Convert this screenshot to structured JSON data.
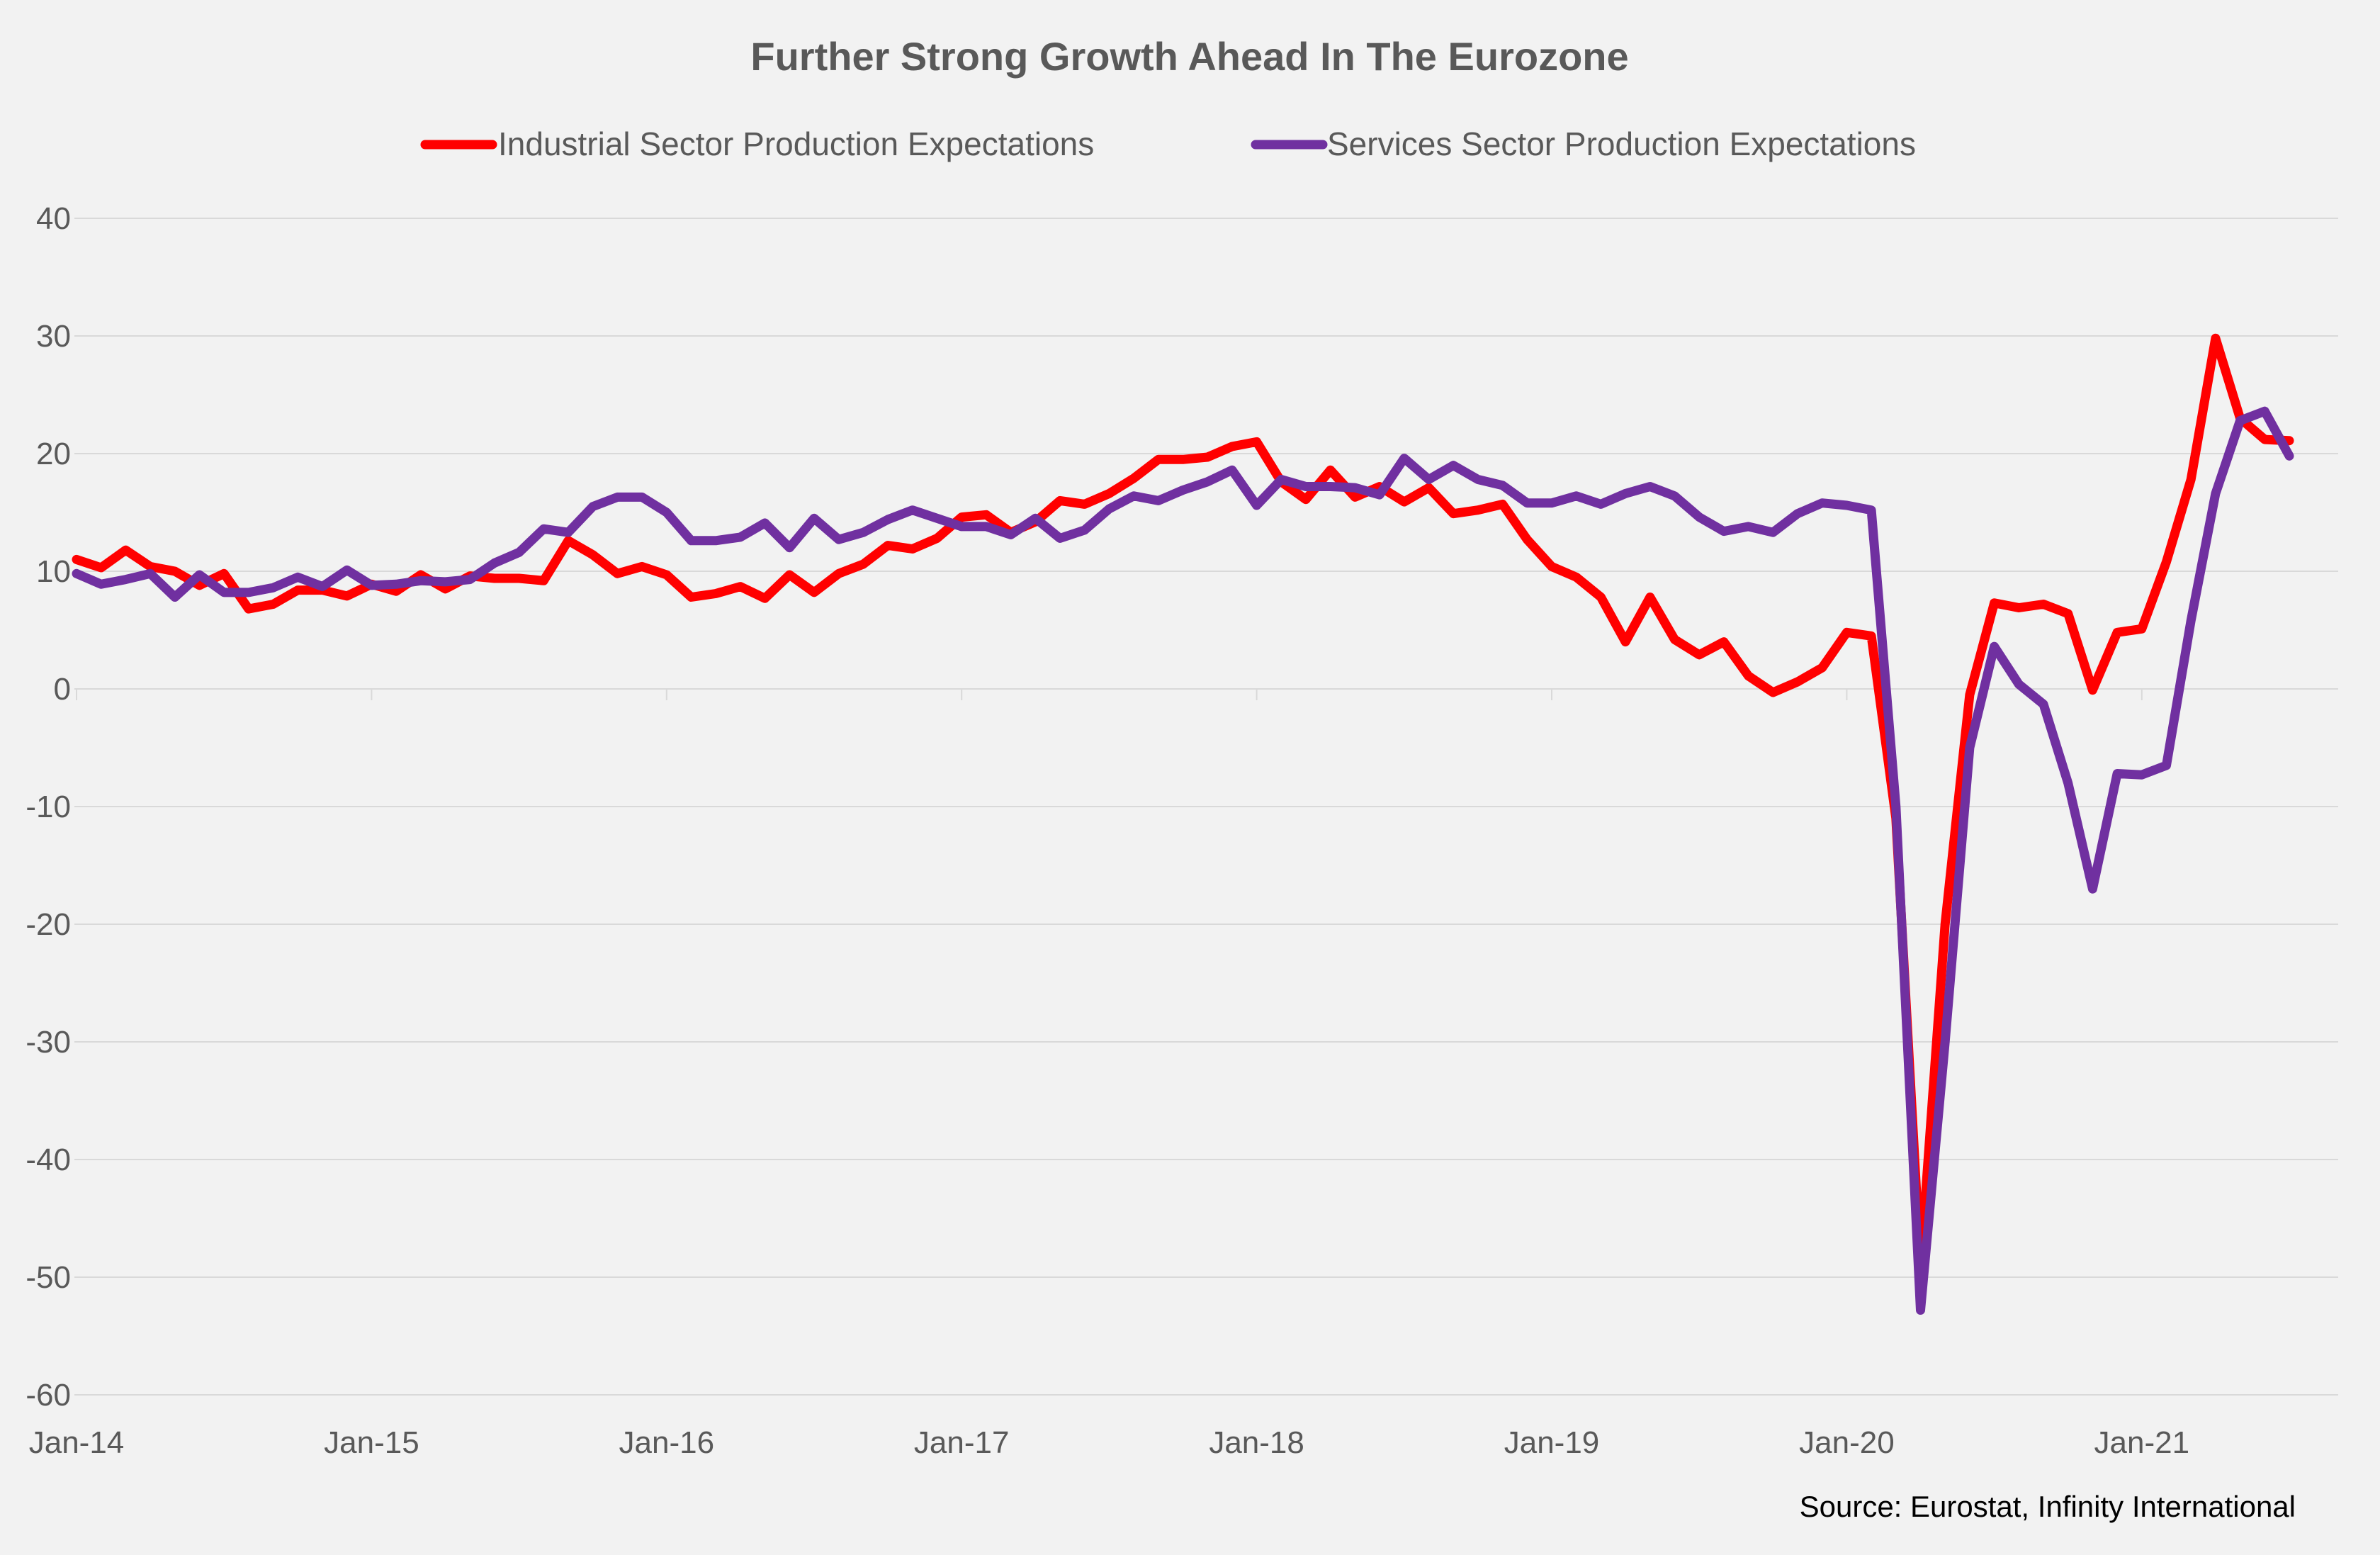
{
  "chart_data": {
    "type": "line",
    "title": "Further Strong Growth Ahead In The Eurozone",
    "xlabel": "",
    "ylabel": "",
    "ylim": [
      -60,
      40
    ],
    "yticks": [
      "40",
      "30",
      "20",
      "10",
      "0",
      "-10",
      "-20",
      "-30",
      "-40",
      "-50",
      "-60"
    ],
    "xticks": [
      "Jan-14",
      "Jan-15",
      "Jan-16",
      "Jan-17",
      "Jan-18",
      "Jan-19",
      "Jan-20",
      "Jan-21"
    ],
    "grid": true,
    "legend_position": "top",
    "source": "Source: Eurostat, Infinity International",
    "x_start": "2014-01",
    "x_end": "2021-06",
    "series": [
      {
        "name": "Industrial Sector Production Expectations",
        "color": "#ff0000",
        "values": [
          11,
          10.3,
          11.8,
          10.4,
          10,
          8.8,
          9.8,
          6.8,
          7.2,
          8.4,
          8.4,
          7.9,
          8.9,
          8.3,
          9.7,
          8.5,
          9.6,
          9.4,
          9.4,
          9.2,
          12.6,
          11.4,
          9.8,
          10.4,
          9.7,
          7.8,
          8.1,
          8.7,
          7.7,
          9.7,
          8.2,
          9.8,
          10.6,
          12.2,
          11.9,
          12.8,
          14.6,
          14.8,
          13.3,
          14.2,
          16,
          15.7,
          16.6,
          17.9,
          19.5,
          19.5,
          19.7,
          20.6,
          21,
          17.6,
          16.1,
          18.6,
          16.3,
          17.2,
          15.9,
          17.1,
          14.9,
          15.2,
          15.7,
          12.7,
          10.4,
          9.5,
          7.8,
          4.0,
          7.8,
          4.2,
          2.9,
          4.0,
          1.1,
          -0.3,
          0.6,
          1.8,
          4.8,
          4.5,
          -11,
          -49,
          -20,
          -0.5,
          7.3,
          6.9,
          7.2,
          6.4,
          -0.1,
          4.8,
          5.1,
          10.8,
          17.8,
          29.8,
          23.0,
          21.2,
          21.1
        ]
      },
      {
        "name": "Services Sector Production Expectations",
        "color": "#7030a0",
        "values": [
          9.8,
          8.9,
          9.3,
          9.8,
          7.8,
          9.7,
          8.2,
          8.2,
          8.6,
          9.5,
          8.7,
          10.1,
          8.8,
          8.9,
          9.2,
          9.1,
          9.3,
          10.7,
          11.6,
          13.6,
          13.3,
          15.5,
          16.3,
          16.3,
          15.0,
          12.6,
          12.6,
          12.9,
          14.1,
          12.0,
          14.5,
          12.7,
          13.3,
          14.4,
          15.2,
          14.5,
          13.8,
          13.8,
          13.1,
          14.5,
          12.8,
          13.5,
          15.3,
          16.4,
          16.0,
          16.9,
          17.6,
          18.6,
          15.6,
          17.8,
          17.2,
          17.2,
          17.1,
          16.5,
          19.6,
          17.8,
          19.0,
          17.8,
          17.3,
          15.8,
          15.8,
          16.4,
          15.7,
          16.6,
          17.2,
          16.4,
          14.6,
          13.4,
          13.8,
          13.3,
          14.9,
          15.8,
          15.6,
          15.2,
          -10,
          -52.8,
          -30,
          -5,
          3.6,
          0.4,
          -1.3,
          -8,
          -17,
          -7.2,
          -7.3,
          -6.5,
          5.8,
          16.6,
          22.8,
          23.6,
          19.8
        ]
      }
    ]
  }
}
